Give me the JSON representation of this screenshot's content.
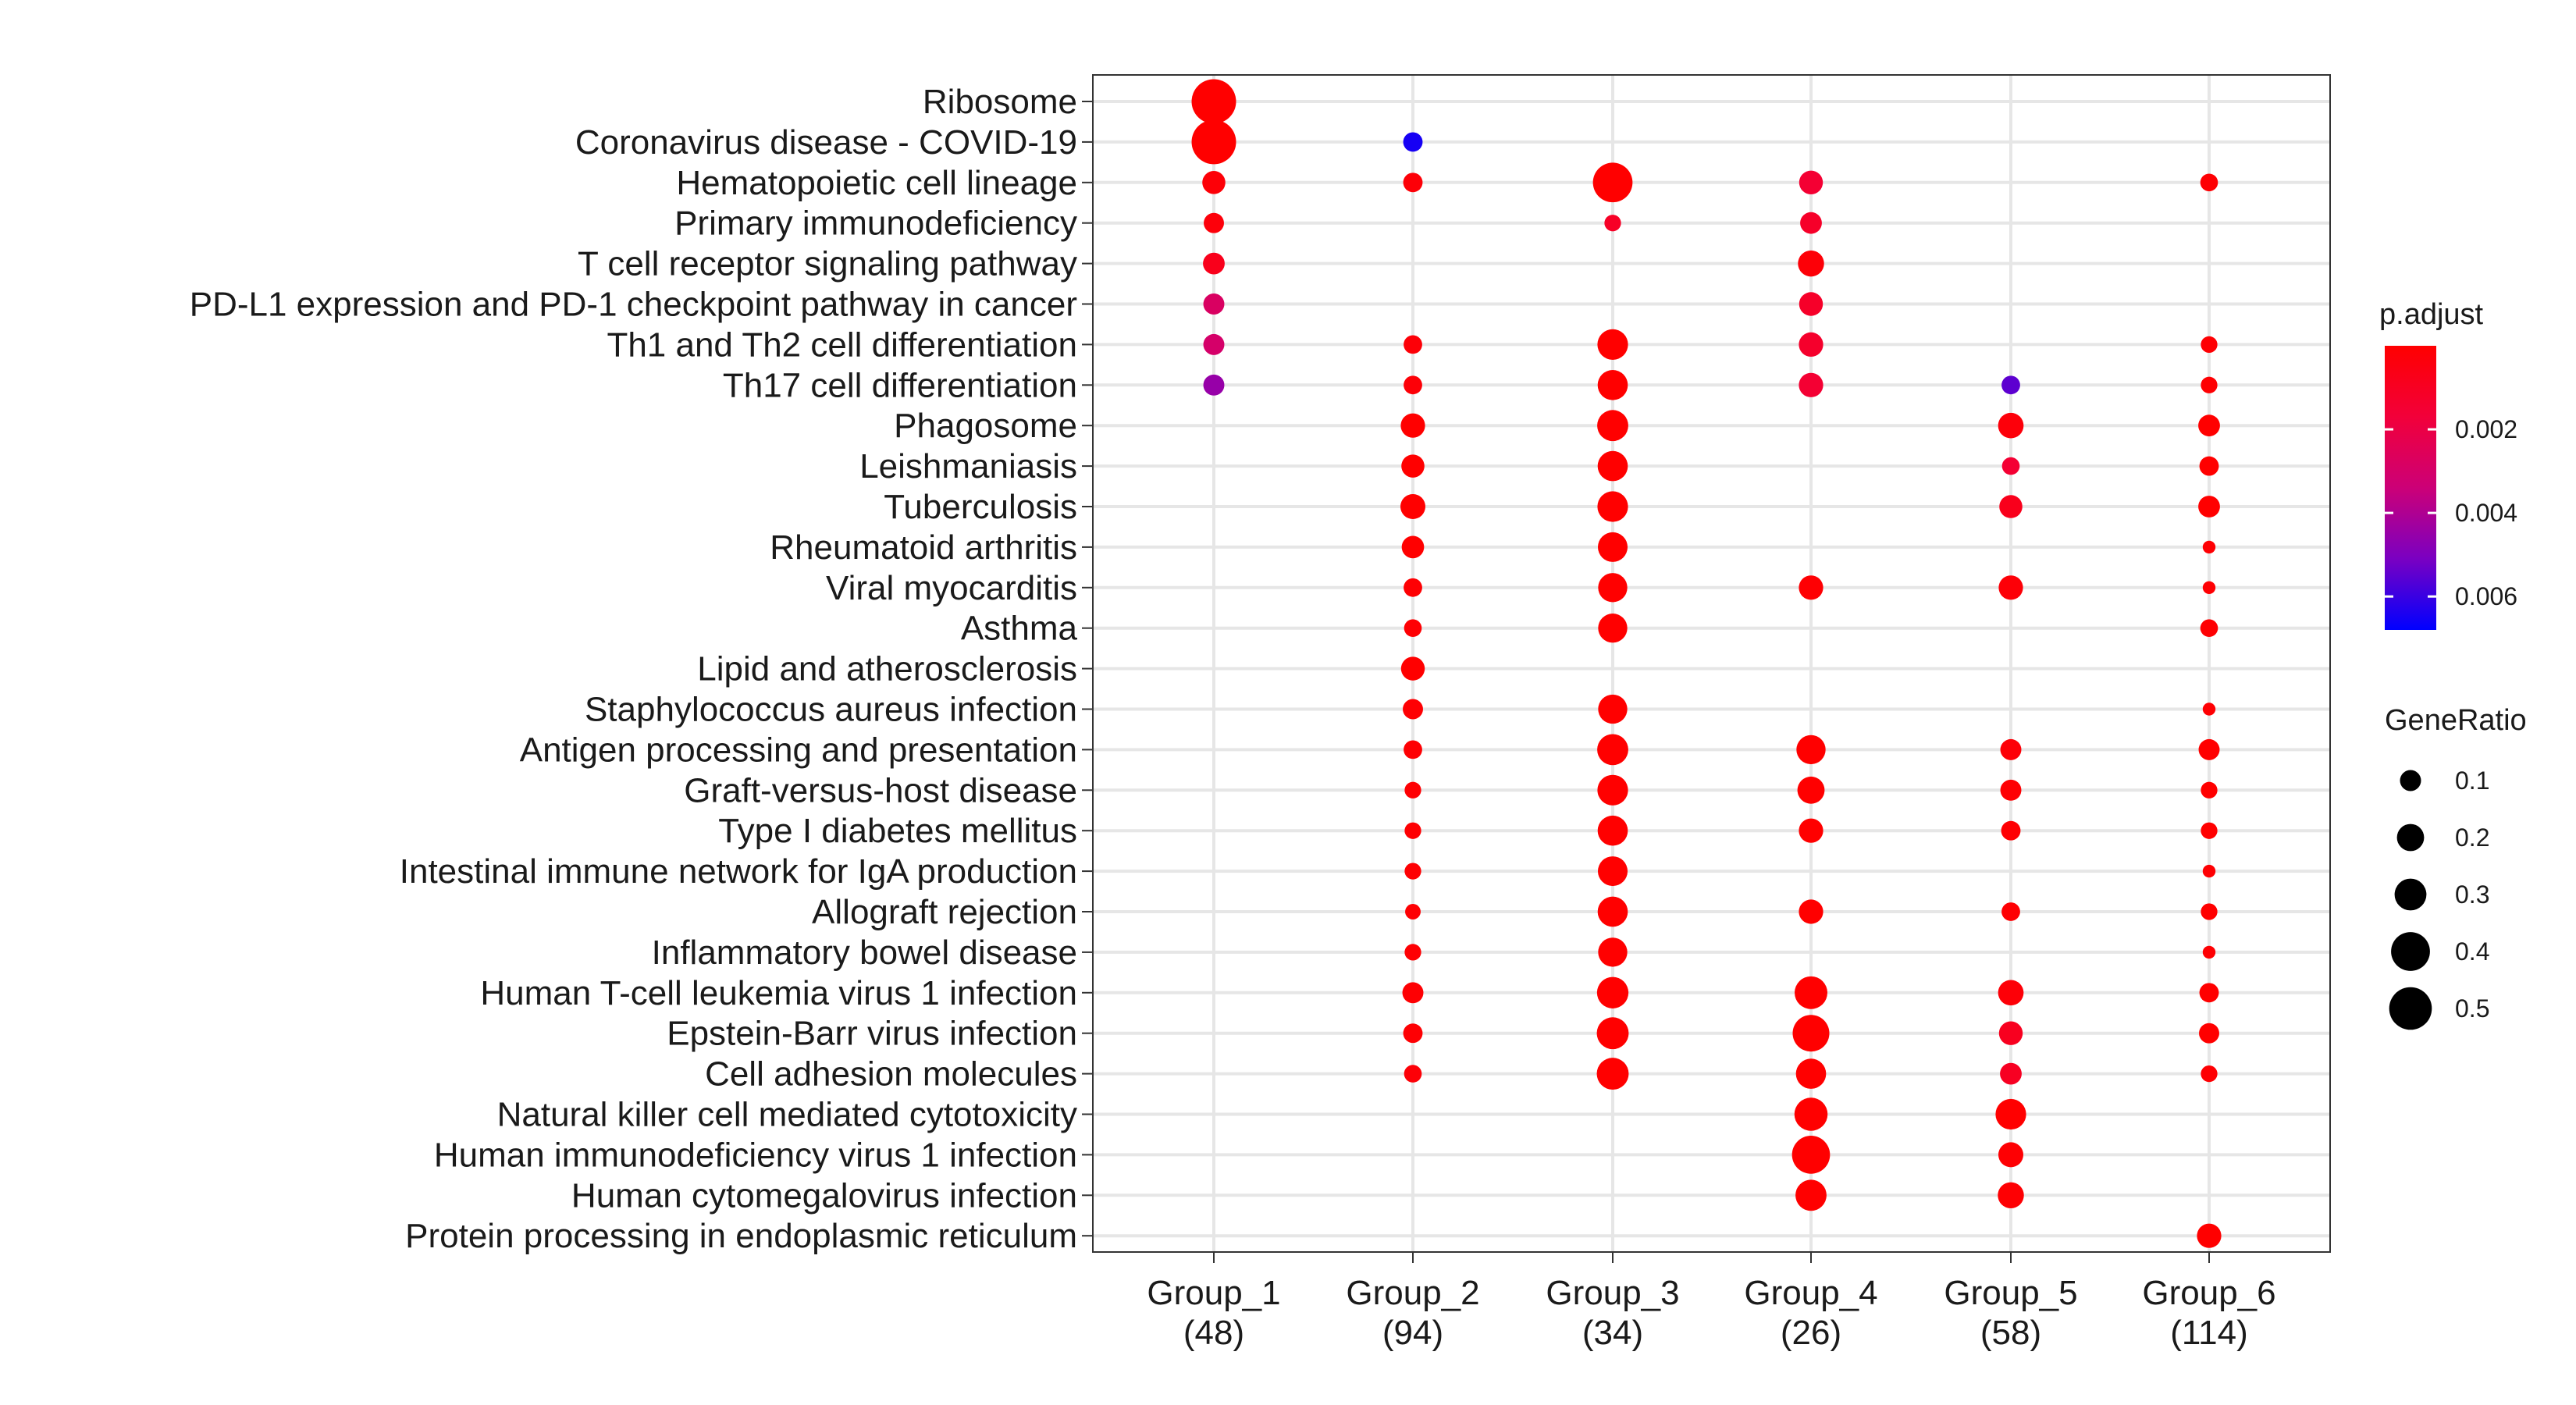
{
  "chart_data": {
    "type": "scatter",
    "title": "",
    "xlabel": "",
    "ylabel": "",
    "categories_x": [
      {
        "name": "Group_1",
        "count": "(48)"
      },
      {
        "name": "Group_2",
        "count": "(94)"
      },
      {
        "name": "Group_3",
        "count": "(34)"
      },
      {
        "name": "Group_4",
        "count": "(26)"
      },
      {
        "name": "Group_5",
        "count": "(58)"
      },
      {
        "name": "Group_6",
        "count": "(114)"
      }
    ],
    "categories_y": [
      "Ribosome",
      "Coronavirus disease - COVID-19",
      "Hematopoietic cell lineage",
      "Primary immunodeficiency",
      "T cell receptor signaling pathway",
      "PD-L1 expression and PD-1 checkpoint pathway in cancer",
      "Th1 and Th2 cell differentiation",
      "Th17 cell differentiation",
      "Phagosome",
      "Leishmaniasis",
      "Tuberculosis",
      "Rheumatoid arthritis",
      "Viral myocarditis",
      "Asthma",
      "Lipid and atherosclerosis",
      "Staphylococcus aureus infection",
      "Antigen processing and presentation",
      "Graft-versus-host disease",
      "Type I diabetes mellitus",
      "Intestinal immune network for IgA production",
      "Allograft rejection",
      "Inflammatory bowel disease",
      "Human T-cell leukemia virus 1 infection",
      "Epstein-Barr virus infection",
      "Cell adhesion molecules",
      "Natural killer cell mediated cytotoxicity",
      "Human immunodeficiency virus 1 infection",
      "Human cytomegalovirus infection",
      "Protein processing in endoplasmic reticulum"
    ],
    "points": [
      {
        "x": "Group_1",
        "y": "Ribosome",
        "gene_ratio": 0.55,
        "p_adjust": 0.0
      },
      {
        "x": "Group_1",
        "y": "Coronavirus disease - COVID-19",
        "gene_ratio": 0.55,
        "p_adjust": 0.0
      },
      {
        "x": "Group_1",
        "y": "Hematopoietic cell lineage",
        "gene_ratio": 0.13,
        "p_adjust": 0.0002
      },
      {
        "x": "Group_1",
        "y": "Primary immunodeficiency",
        "gene_ratio": 0.09,
        "p_adjust": 0.0003
      },
      {
        "x": "Group_1",
        "y": "T cell receptor signaling pathway",
        "gene_ratio": 0.11,
        "p_adjust": 0.0008
      },
      {
        "x": "Group_1",
        "y": "PD-L1 expression and PD-1 checkpoint pathway in cancer",
        "gene_ratio": 0.1,
        "p_adjust": 0.0028
      },
      {
        "x": "Group_1",
        "y": "Th1 and Th2 cell differentiation",
        "gene_ratio": 0.1,
        "p_adjust": 0.003
      },
      {
        "x": "Group_1",
        "y": "Th17 cell differentiation",
        "gene_ratio": 0.1,
        "p_adjust": 0.0045
      },
      {
        "x": "Group_2",
        "y": "Coronavirus disease - COVID-19",
        "gene_ratio": 0.08,
        "p_adjust": 0.0065
      },
      {
        "x": "Group_2",
        "y": "Hematopoietic cell lineage",
        "gene_ratio": 0.08,
        "p_adjust": 0.0002
      },
      {
        "x": "Group_2",
        "y": "Th1 and Th2 cell differentiation",
        "gene_ratio": 0.07,
        "p_adjust": 0.0002
      },
      {
        "x": "Group_2",
        "y": "Th17 cell differentiation",
        "gene_ratio": 0.07,
        "p_adjust": 0.0002
      },
      {
        "x": "Group_2",
        "y": "Phagosome",
        "gene_ratio": 0.15,
        "p_adjust": 0.0
      },
      {
        "x": "Group_2",
        "y": "Leishmaniasis",
        "gene_ratio": 0.13,
        "p_adjust": 0.0
      },
      {
        "x": "Group_2",
        "y": "Tuberculosis",
        "gene_ratio": 0.16,
        "p_adjust": 0.0
      },
      {
        "x": "Group_2",
        "y": "Rheumatoid arthritis",
        "gene_ratio": 0.12,
        "p_adjust": 0.0
      },
      {
        "x": "Group_2",
        "y": "Viral myocarditis",
        "gene_ratio": 0.07,
        "p_adjust": 0.0001
      },
      {
        "x": "Group_2",
        "y": "Asthma",
        "gene_ratio": 0.06,
        "p_adjust": 0.0001
      },
      {
        "x": "Group_2",
        "y": "Lipid and atherosclerosis",
        "gene_ratio": 0.14,
        "p_adjust": 0.0
      },
      {
        "x": "Group_2",
        "y": "Staphylococcus aureus infection",
        "gene_ratio": 0.09,
        "p_adjust": 0.0001
      },
      {
        "x": "Group_2",
        "y": "Antigen processing and presentation",
        "gene_ratio": 0.07,
        "p_adjust": 0.0001
      },
      {
        "x": "Group_2",
        "y": "Graft-versus-host disease",
        "gene_ratio": 0.05,
        "p_adjust": 0.0001
      },
      {
        "x": "Group_2",
        "y": "Type I diabetes mellitus",
        "gene_ratio": 0.05,
        "p_adjust": 0.0001
      },
      {
        "x": "Group_2",
        "y": "Intestinal immune network for IgA production",
        "gene_ratio": 0.05,
        "p_adjust": 0.0001
      },
      {
        "x": "Group_2",
        "y": "Allograft rejection",
        "gene_ratio": 0.04,
        "p_adjust": 0.0001
      },
      {
        "x": "Group_2",
        "y": "Inflammatory bowel disease",
        "gene_ratio": 0.05,
        "p_adjust": 0.0001
      },
      {
        "x": "Group_2",
        "y": "Human T-cell leukemia virus 1 infection",
        "gene_ratio": 0.1,
        "p_adjust": 0.0001
      },
      {
        "x": "Group_2",
        "y": "Epstein-Barr virus infection",
        "gene_ratio": 0.08,
        "p_adjust": 0.0001
      },
      {
        "x": "Group_2",
        "y": "Cell adhesion molecules",
        "gene_ratio": 0.06,
        "p_adjust": 0.0002
      },
      {
        "x": "Group_3",
        "y": "Hematopoietic cell lineage",
        "gene_ratio": 0.42,
        "p_adjust": 0.0
      },
      {
        "x": "Group_3",
        "y": "Primary immunodeficiency",
        "gene_ratio": 0.05,
        "p_adjust": 0.0011
      },
      {
        "x": "Group_3",
        "y": "Th1 and Th2 cell differentiation",
        "gene_ratio": 0.27,
        "p_adjust": 0.0
      },
      {
        "x": "Group_3",
        "y": "Th17 cell differentiation",
        "gene_ratio": 0.26,
        "p_adjust": 0.0
      },
      {
        "x": "Group_3",
        "y": "Phagosome",
        "gene_ratio": 0.28,
        "p_adjust": 0.0
      },
      {
        "x": "Group_3",
        "y": "Leishmaniasis",
        "gene_ratio": 0.26,
        "p_adjust": 0.0
      },
      {
        "x": "Group_3",
        "y": "Tuberculosis",
        "gene_ratio": 0.27,
        "p_adjust": 0.0
      },
      {
        "x": "Group_3",
        "y": "Rheumatoid arthritis",
        "gene_ratio": 0.25,
        "p_adjust": 0.0
      },
      {
        "x": "Group_3",
        "y": "Viral myocarditis",
        "gene_ratio": 0.24,
        "p_adjust": 0.0
      },
      {
        "x": "Group_3",
        "y": "Asthma",
        "gene_ratio": 0.24,
        "p_adjust": 0.0
      },
      {
        "x": "Group_3",
        "y": "Staphylococcus aureus infection",
        "gene_ratio": 0.24,
        "p_adjust": 0.0
      },
      {
        "x": "Group_3",
        "y": "Antigen processing and presentation",
        "gene_ratio": 0.28,
        "p_adjust": 0.0
      },
      {
        "x": "Group_3",
        "y": "Graft-versus-host disease",
        "gene_ratio": 0.27,
        "p_adjust": 0.0
      },
      {
        "x": "Group_3",
        "y": "Type I diabetes mellitus",
        "gene_ratio": 0.26,
        "p_adjust": 0.0
      },
      {
        "x": "Group_3",
        "y": "Intestinal immune network for IgA production",
        "gene_ratio": 0.25,
        "p_adjust": 0.0
      },
      {
        "x": "Group_3",
        "y": "Allograft rejection",
        "gene_ratio": 0.26,
        "p_adjust": 0.0
      },
      {
        "x": "Group_3",
        "y": "Inflammatory bowel disease",
        "gene_ratio": 0.24,
        "p_adjust": 0.0
      },
      {
        "x": "Group_3",
        "y": "Human T-cell leukemia virus 1 infection",
        "gene_ratio": 0.29,
        "p_adjust": 0.0
      },
      {
        "x": "Group_3",
        "y": "Epstein-Barr virus infection",
        "gene_ratio": 0.3,
        "p_adjust": 0.0
      },
      {
        "x": "Group_3",
        "y": "Cell adhesion molecules",
        "gene_ratio": 0.3,
        "p_adjust": 0.0
      },
      {
        "x": "Group_4",
        "y": "Hematopoietic cell lineage",
        "gene_ratio": 0.14,
        "p_adjust": 0.0015
      },
      {
        "x": "Group_4",
        "y": "Primary immunodeficiency",
        "gene_ratio": 0.11,
        "p_adjust": 0.0012
      },
      {
        "x": "Group_4",
        "y": "T cell receptor signaling pathway",
        "gene_ratio": 0.18,
        "p_adjust": 0.0002
      },
      {
        "x": "Group_4",
        "y": "PD-L1 expression and PD-1 checkpoint pathway in cancer",
        "gene_ratio": 0.14,
        "p_adjust": 0.0012
      },
      {
        "x": "Group_4",
        "y": "Th1 and Th2 cell differentiation",
        "gene_ratio": 0.15,
        "p_adjust": 0.0013
      },
      {
        "x": "Group_4",
        "y": "Th17 cell differentiation",
        "gene_ratio": 0.15,
        "p_adjust": 0.0015
      },
      {
        "x": "Group_4",
        "y": "Viral myocarditis",
        "gene_ratio": 0.15,
        "p_adjust": 0.0001
      },
      {
        "x": "Group_4",
        "y": "Antigen processing and presentation",
        "gene_ratio": 0.24,
        "p_adjust": 0.0
      },
      {
        "x": "Group_4",
        "y": "Graft-versus-host disease",
        "gene_ratio": 0.2,
        "p_adjust": 0.0
      },
      {
        "x": "Group_4",
        "y": "Type I diabetes mellitus",
        "gene_ratio": 0.15,
        "p_adjust": 0.0
      },
      {
        "x": "Group_4",
        "y": "Allograft rejection",
        "gene_ratio": 0.15,
        "p_adjust": 0.0
      },
      {
        "x": "Group_4",
        "y": "Human T-cell leukemia virus 1 infection",
        "gene_ratio": 0.32,
        "p_adjust": 0.0
      },
      {
        "x": "Group_4",
        "y": "Epstein-Barr virus infection",
        "gene_ratio": 0.35,
        "p_adjust": 0.0
      },
      {
        "x": "Group_4",
        "y": "Cell adhesion molecules",
        "gene_ratio": 0.26,
        "p_adjust": 0.0
      },
      {
        "x": "Group_4",
        "y": "Natural killer cell mediated cytotoxicity",
        "gene_ratio": 0.33,
        "p_adjust": 0.0
      },
      {
        "x": "Group_4",
        "y": "Human immunodeficiency virus 1 infection",
        "gene_ratio": 0.38,
        "p_adjust": 0.0
      },
      {
        "x": "Group_4",
        "y": "Human cytomegalovirus infection",
        "gene_ratio": 0.28,
        "p_adjust": 0.0
      },
      {
        "x": "Group_5",
        "y": "Th17 cell differentiation",
        "gene_ratio": 0.07,
        "p_adjust": 0.0055
      },
      {
        "x": "Group_5",
        "y": "Phagosome",
        "gene_ratio": 0.17,
        "p_adjust": 0.0003
      },
      {
        "x": "Group_5",
        "y": "Leishmaniasis",
        "gene_ratio": 0.06,
        "p_adjust": 0.0015
      },
      {
        "x": "Group_5",
        "y": "Tuberculosis",
        "gene_ratio": 0.13,
        "p_adjust": 0.0008
      },
      {
        "x": "Group_5",
        "y": "Viral myocarditis",
        "gene_ratio": 0.15,
        "p_adjust": 0.0002
      },
      {
        "x": "Group_5",
        "y": "Antigen processing and presentation",
        "gene_ratio": 0.1,
        "p_adjust": 0.0002
      },
      {
        "x": "Group_5",
        "y": "Graft-versus-host disease",
        "gene_ratio": 0.1,
        "p_adjust": 0.0001
      },
      {
        "x": "Group_5",
        "y": "Type I diabetes mellitus",
        "gene_ratio": 0.08,
        "p_adjust": 0.0001
      },
      {
        "x": "Group_5",
        "y": "Allograft rejection",
        "gene_ratio": 0.07,
        "p_adjust": 0.0001
      },
      {
        "x": "Group_5",
        "y": "Human T-cell leukemia virus 1 infection",
        "gene_ratio": 0.17,
        "p_adjust": 0.0002
      },
      {
        "x": "Group_5",
        "y": "Epstein-Barr virus infection",
        "gene_ratio": 0.14,
        "p_adjust": 0.0009
      },
      {
        "x": "Group_5",
        "y": "Cell adhesion molecules",
        "gene_ratio": 0.11,
        "p_adjust": 0.001
      },
      {
        "x": "Group_5",
        "y": "Natural killer cell mediated cytotoxicity",
        "gene_ratio": 0.27,
        "p_adjust": 0.0
      },
      {
        "x": "Group_5",
        "y": "Human immunodeficiency virus 1 infection",
        "gene_ratio": 0.16,
        "p_adjust": 0.0001
      },
      {
        "x": "Group_5",
        "y": "Human cytomegalovirus infection",
        "gene_ratio": 0.18,
        "p_adjust": 0.0001
      },
      {
        "x": "Group_6",
        "y": "Hematopoietic cell lineage",
        "gene_ratio": 0.06,
        "p_adjust": 0.0001
      },
      {
        "x": "Group_6",
        "y": "Th1 and Th2 cell differentiation",
        "gene_ratio": 0.05,
        "p_adjust": 0.0001
      },
      {
        "x": "Group_6",
        "y": "Th17 cell differentiation",
        "gene_ratio": 0.05,
        "p_adjust": 0.0001
      },
      {
        "x": "Group_6",
        "y": "Phagosome",
        "gene_ratio": 0.11,
        "p_adjust": 0.0
      },
      {
        "x": "Group_6",
        "y": "Leishmaniasis",
        "gene_ratio": 0.08,
        "p_adjust": 0.0
      },
      {
        "x": "Group_6",
        "y": "Tuberculosis",
        "gene_ratio": 0.11,
        "p_adjust": 0.0
      },
      {
        "x": "Group_6",
        "y": "Rheumatoid arthritis",
        "gene_ratio": 0.02,
        "p_adjust": 0.0001
      },
      {
        "x": "Group_6",
        "y": "Viral myocarditis",
        "gene_ratio": 0.02,
        "p_adjust": 0.0001
      },
      {
        "x": "Group_6",
        "y": "Asthma",
        "gene_ratio": 0.06,
        "p_adjust": 0.0001
      },
      {
        "x": "Group_6",
        "y": "Staphylococcus aureus infection",
        "gene_ratio": 0.02,
        "p_adjust": 0.0001
      },
      {
        "x": "Group_6",
        "y": "Antigen processing and presentation",
        "gene_ratio": 0.1,
        "p_adjust": 0.0
      },
      {
        "x": "Group_6",
        "y": "Graft-versus-host disease",
        "gene_ratio": 0.05,
        "p_adjust": 0.0
      },
      {
        "x": "Group_6",
        "y": "Type I diabetes mellitus",
        "gene_ratio": 0.05,
        "p_adjust": 0.0
      },
      {
        "x": "Group_6",
        "y": "Intestinal immune network for IgA production",
        "gene_ratio": 0.02,
        "p_adjust": 0.0001
      },
      {
        "x": "Group_6",
        "y": "Allograft rejection",
        "gene_ratio": 0.05,
        "p_adjust": 0.0
      },
      {
        "x": "Group_6",
        "y": "Inflammatory bowel disease",
        "gene_ratio": 0.02,
        "p_adjust": 0.0001
      },
      {
        "x": "Group_6",
        "y": "Human T-cell leukemia virus 1 infection",
        "gene_ratio": 0.08,
        "p_adjust": 0.0
      },
      {
        "x": "Group_6",
        "y": "Epstein-Barr virus infection",
        "gene_ratio": 0.09,
        "p_adjust": 0.0
      },
      {
        "x": "Group_6",
        "y": "Cell adhesion molecules",
        "gene_ratio": 0.05,
        "p_adjust": 0.0001
      },
      {
        "x": "Group_6",
        "y": "Protein processing in endoplasmic reticulum",
        "gene_ratio": 0.15,
        "p_adjust": 0.0
      }
    ],
    "color_legend": {
      "title": "p.adjust",
      "ticks": [
        "0.002",
        "0.004",
        "0.006"
      ],
      "tick_values": [
        0.002,
        0.004,
        0.006
      ],
      "range": [
        0.0,
        0.0068
      ],
      "low_color": "#FF0000",
      "high_color": "#0000FF"
    },
    "size_legend": {
      "title": "GeneRatio",
      "ticks": [
        "0.1",
        "0.2",
        "0.3",
        "0.4",
        "0.5"
      ],
      "tick_values": [
        0.1,
        0.2,
        0.3,
        0.4,
        0.5
      ]
    },
    "grid": true,
    "legend_position": "right"
  }
}
